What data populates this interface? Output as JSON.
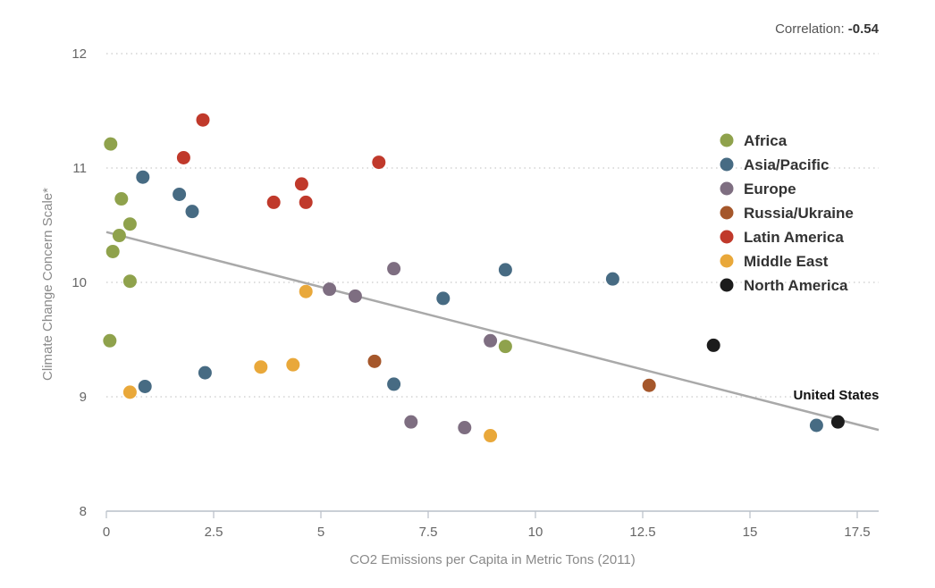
{
  "chart_data": {
    "type": "scatter",
    "title": "",
    "xlabel": "CO2 Emissions per Capita in Metric Tons (2011)",
    "ylabel": "Climate Change Concern Scale*",
    "xlim": [
      0,
      18
    ],
    "ylim": [
      8,
      12
    ],
    "xticks": [
      0,
      2.5,
      5,
      7.5,
      10,
      12.5,
      15,
      17.5
    ],
    "xtick_labels": [
      "0",
      "2.5",
      "5",
      "7.5",
      "10",
      "12.5",
      "15",
      "17.5"
    ],
    "yticks": [
      8,
      9,
      10,
      11,
      12
    ],
    "ytick_labels": [
      "8",
      "9",
      "10",
      "11",
      "12"
    ],
    "grid": "horizontal dotted",
    "legend_position": "right",
    "correlation_label": "Correlation:",
    "correlation_value": "-0.54",
    "trendline": {
      "x": [
        0,
        18
      ],
      "y": [
        10.44,
        8.71
      ],
      "color": "#a9a9a9"
    },
    "annotations": [
      {
        "text": "United States",
        "x": 17.05,
        "y": 8.78
      }
    ],
    "series": [
      {
        "name": "Africa",
        "color": "#8fa24c",
        "points": [
          [
            0.1,
            11.21
          ],
          [
            0.35,
            10.73
          ],
          [
            0.55,
            10.51
          ],
          [
            0.3,
            10.41
          ],
          [
            0.15,
            10.27
          ],
          [
            0.55,
            10.01
          ],
          [
            0.08,
            9.49
          ],
          [
            9.3,
            9.44
          ]
        ]
      },
      {
        "name": "Asia/Pacific",
        "color": "#476b83",
        "points": [
          [
            0.85,
            10.92
          ],
          [
            1.7,
            10.77
          ],
          [
            2.0,
            10.62
          ],
          [
            9.3,
            10.11
          ],
          [
            7.85,
            9.86
          ],
          [
            11.8,
            10.03
          ],
          [
            0.9,
            9.09
          ],
          [
            2.3,
            9.21
          ],
          [
            6.7,
            9.11
          ],
          [
            16.55,
            8.75
          ]
        ]
      },
      {
        "name": "Europe",
        "color": "#7e6e81",
        "points": [
          [
            6.7,
            10.12
          ],
          [
            5.2,
            9.94
          ],
          [
            5.8,
            9.88
          ],
          [
            8.95,
            9.49
          ],
          [
            7.1,
            8.78
          ],
          [
            8.35,
            8.73
          ]
        ]
      },
      {
        "name": "Russia/Ukraine",
        "color": "#a5572b",
        "points": [
          [
            6.25,
            9.31
          ],
          [
            12.65,
            9.1
          ]
        ]
      },
      {
        "name": "Latin America",
        "color": "#c0392b",
        "points": [
          [
            2.25,
            11.42
          ],
          [
            1.8,
            11.09
          ],
          [
            6.35,
            11.05
          ],
          [
            4.55,
            10.86
          ],
          [
            3.9,
            10.7
          ],
          [
            4.65,
            10.7
          ]
        ]
      },
      {
        "name": "Middle East",
        "color": "#e9a83a",
        "points": [
          [
            4.65,
            9.92
          ],
          [
            3.6,
            9.26
          ],
          [
            4.35,
            9.28
          ],
          [
            0.55,
            9.04
          ],
          [
            8.95,
            8.66
          ]
        ]
      },
      {
        "name": "North America",
        "color": "#1c1c1c",
        "points": [
          [
            14.15,
            9.45
          ],
          [
            17.05,
            8.78
          ]
        ]
      }
    ]
  }
}
